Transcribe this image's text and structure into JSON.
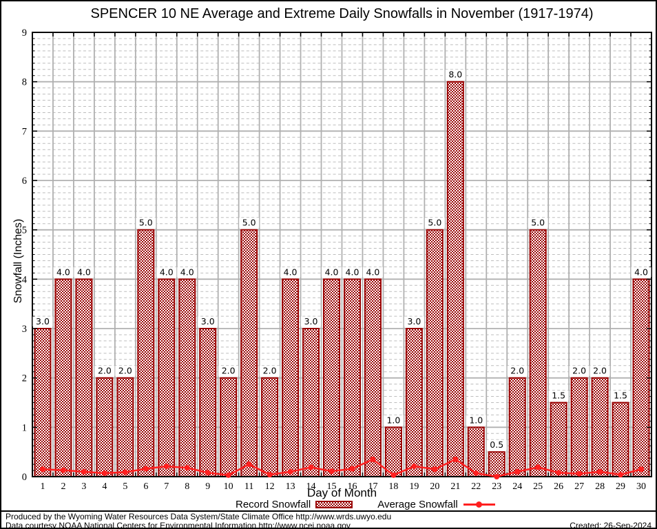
{
  "chart_data": {
    "type": "bar",
    "title": "SPENCER 10 NE Average and Extreme Daily Snowfalls in November (1917-1974)",
    "xlabel": "Day of Month",
    "ylabel": "Snowfall (Inches)",
    "ylim": [
      0,
      9
    ],
    "y_major_step": 1,
    "y_minor_step": 0.125,
    "grid": true,
    "legend_position": "bottom",
    "x": [
      1,
      2,
      3,
      4,
      5,
      6,
      7,
      8,
      9,
      10,
      11,
      12,
      13,
      14,
      15,
      16,
      17,
      18,
      19,
      20,
      21,
      22,
      23,
      24,
      25,
      26,
      27,
      28,
      29,
      30
    ],
    "series": [
      {
        "name": "Record Snowfall",
        "type": "bar",
        "color": "#990000",
        "values": [
          3.0,
          4.0,
          4.0,
          2.0,
          2.0,
          5.0,
          4.0,
          4.0,
          3.0,
          2.0,
          5.0,
          2.0,
          4.0,
          3.0,
          4.0,
          4.0,
          4.0,
          1.0,
          3.0,
          5.0,
          8.0,
          1.0,
          0.5,
          2.0,
          5.0,
          1.5,
          2.0,
          2.0,
          1.5,
          4.0
        ]
      },
      {
        "name": "Average Snowfall",
        "type": "line",
        "color": "#ff1f1f",
        "values": [
          0.15,
          0.13,
          0.1,
          0.07,
          0.09,
          0.16,
          0.21,
          0.18,
          0.08,
          0.03,
          0.25,
          0.04,
          0.1,
          0.19,
          0.11,
          0.16,
          0.35,
          0.03,
          0.21,
          0.15,
          0.35,
          0.07,
          0.0,
          0.1,
          0.19,
          0.08,
          0.06,
          0.1,
          0.04,
          0.15
        ]
      }
    ]
  },
  "legend": {
    "record_label": "Record Snowfall",
    "average_label": "Average Snowfall"
  },
  "footer": {
    "line1": "Produced by the Wyoming Water Resources Data System/State Climate Office http://www.wrds.uwyo.edu",
    "line2": "Data courtesy NOAA National Centers for Environmental Information http://www.ncei.noaa.gov",
    "created": "Created: 26-Sep-2024"
  },
  "colors": {
    "bar": "#990000",
    "line": "#ff1f1f",
    "grid_major": "#b0b0b0",
    "grid_minor": "#bdbdbd",
    "axis": "#000000"
  }
}
